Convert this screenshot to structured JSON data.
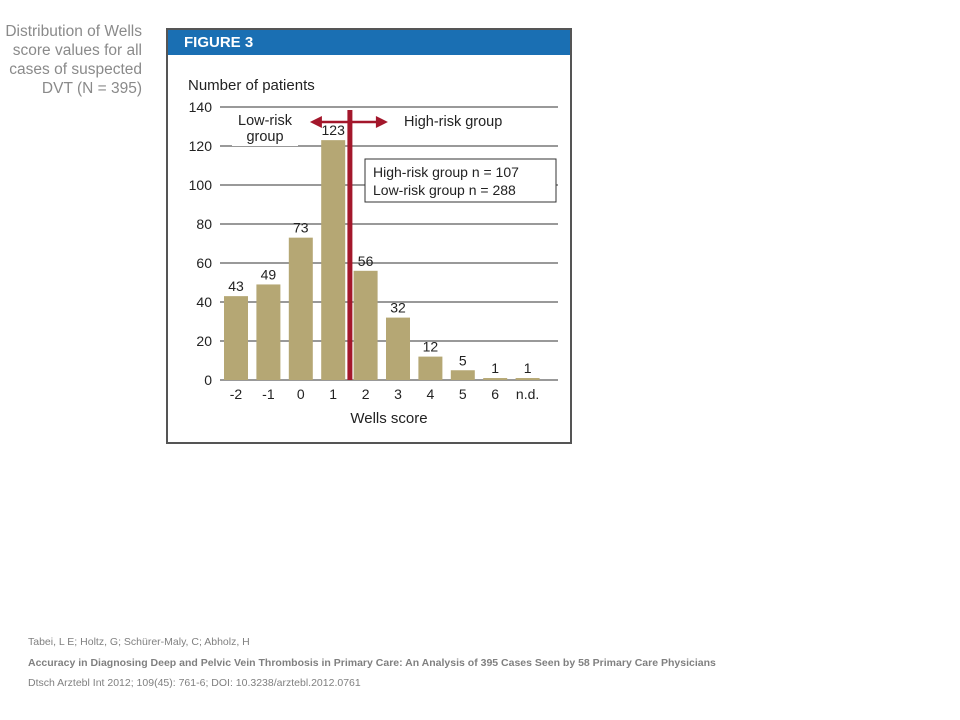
{
  "side_caption": {
    "lines": [
      "Distribution of Wells",
      "score values for all",
      "cases of suspected",
      "DVT (N = 395)"
    ]
  },
  "figure": {
    "header": "FIGURE 3"
  },
  "chart_data": {
    "type": "bar",
    "title": "",
    "ylabel": "Number of patients",
    "xlabel": "Wells score",
    "ylim": [
      0,
      140
    ],
    "yticks": [
      0,
      20,
      40,
      60,
      80,
      100,
      120,
      140
    ],
    "grid": true,
    "categories": [
      "-2",
      "-1",
      "0",
      "1",
      "2",
      "3",
      "4",
      "5",
      "6",
      "n.d."
    ],
    "values": [
      43,
      49,
      73,
      123,
      56,
      32,
      12,
      5,
      1,
      1
    ],
    "bar_color": "#b5a774",
    "divider_color": "#a3172b",
    "group_labels": {
      "low": [
        "Low-risk",
        "group"
      ],
      "high": "High-risk group"
    },
    "annotation": [
      "High-risk group n = 107",
      "Low-risk group n = 288"
    ]
  },
  "citation": {
    "authors": "Tabei, L E; Holtz, G; Schürer-Maly, C; Abholz, H",
    "title": "Accuracy in Diagnosing Deep and Pelvic Vein Thrombosis in Primary Care: An Analysis of 395 Cases Seen by 58 Primary Care Physicians",
    "reference": "Dtsch Arztebl Int 2012; 109(45): 761-6; DOI: 10.3238/arztebl.2012.0761"
  }
}
